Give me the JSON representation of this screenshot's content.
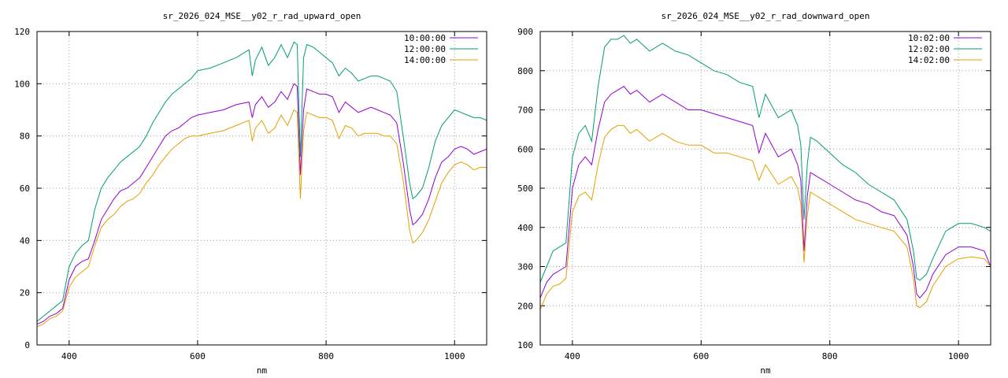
{
  "chart_data": [
    {
      "type": "line",
      "title": "sr_2026_024_MSE__y02_r_rad_upward_open",
      "xlabel": "nm",
      "ylabel": "",
      "xlim": [
        350,
        1050
      ],
      "ylim": [
        0,
        120
      ],
      "xticks": [
        400,
        600,
        800,
        1000
      ],
      "yticks": [
        0,
        20,
        40,
        60,
        80,
        100,
        120
      ],
      "grid": true,
      "legend_position": "top-right",
      "series": [
        {
          "name": "10:00:00",
          "color": "#9400d3",
          "x": [
            350,
            360,
            370,
            380,
            390,
            400,
            410,
            420,
            430,
            440,
            450,
            460,
            470,
            480,
            490,
            500,
            510,
            520,
            530,
            540,
            550,
            560,
            570,
            580,
            590,
            600,
            620,
            640,
            660,
            680,
            685,
            690,
            700,
            710,
            720,
            730,
            740,
            750,
            755,
            760,
            765,
            770,
            780,
            790,
            800,
            810,
            820,
            830,
            840,
            850,
            860,
            870,
            880,
            890,
            900,
            910,
            920,
            930,
            935,
            940,
            950,
            960,
            970,
            980,
            990,
            1000,
            1010,
            1020,
            1030,
            1040,
            1050
          ],
          "y": [
            8,
            9,
            11,
            12,
            14,
            25,
            30,
            32,
            33,
            40,
            48,
            52,
            56,
            59,
            60,
            62,
            64,
            68,
            72,
            76,
            80,
            82,
            83,
            85,
            87,
            88,
            89,
            90,
            92,
            93,
            87,
            92,
            95,
            91,
            93,
            97,
            94,
            100,
            99,
            65,
            90,
            98,
            97,
            96,
            96,
            95,
            89,
            93,
            91,
            89,
            90,
            91,
            90,
            89,
            88,
            85,
            70,
            52,
            46,
            47,
            50,
            56,
            64,
            70,
            72,
            75,
            76,
            75,
            73,
            74,
            75
          ]
        },
        {
          "name": "12:00:00",
          "color": "#009e73",
          "x": [
            350,
            360,
            370,
            380,
            390,
            400,
            410,
            420,
            430,
            440,
            450,
            460,
            470,
            480,
            490,
            500,
            510,
            520,
            530,
            540,
            550,
            560,
            570,
            580,
            590,
            600,
            620,
            640,
            660,
            680,
            685,
            690,
            700,
            710,
            720,
            730,
            740,
            750,
            755,
            760,
            765,
            770,
            780,
            790,
            800,
            810,
            820,
            830,
            840,
            850,
            860,
            870,
            880,
            890,
            900,
            910,
            920,
            930,
            935,
            940,
            950,
            960,
            970,
            980,
            990,
            1000,
            1010,
            1020,
            1030,
            1040,
            1050
          ],
          "y": [
            9,
            11,
            13,
            15,
            17,
            30,
            35,
            38,
            40,
            52,
            60,
            64,
            67,
            70,
            72,
            74,
            76,
            80,
            85,
            89,
            93,
            96,
            98,
            100,
            102,
            105,
            106,
            108,
            110,
            113,
            103,
            109,
            114,
            107,
            110,
            115,
            110,
            116,
            115,
            72,
            110,
            115,
            114,
            112,
            110,
            108,
            103,
            106,
            104,
            101,
            102,
            103,
            103,
            102,
            101,
            97,
            80,
            62,
            56,
            57,
            60,
            68,
            78,
            84,
            87,
            90,
            89,
            88,
            87,
            87,
            86
          ]
        },
        {
          "name": "14:00:00",
          "color": "#e69f00",
          "x": [
            350,
            360,
            370,
            380,
            390,
            400,
            410,
            420,
            430,
            440,
            450,
            460,
            470,
            480,
            490,
            500,
            510,
            520,
            530,
            540,
            550,
            560,
            570,
            580,
            590,
            600,
            620,
            640,
            660,
            680,
            685,
            690,
            700,
            710,
            720,
            730,
            740,
            750,
            755,
            760,
            765,
            770,
            780,
            790,
            800,
            810,
            820,
            830,
            840,
            850,
            860,
            870,
            880,
            890,
            900,
            910,
            920,
            930,
            935,
            940,
            950,
            960,
            970,
            980,
            990,
            1000,
            1010,
            1020,
            1030,
            1040,
            1050
          ],
          "y": [
            7,
            8,
            10,
            11,
            13,
            22,
            26,
            28,
            30,
            38,
            45,
            48,
            50,
            53,
            55,
            56,
            58,
            62,
            65,
            69,
            72,
            75,
            77,
            79,
            80,
            80,
            81,
            82,
            84,
            86,
            78,
            83,
            86,
            81,
            83,
            88,
            84,
            90,
            89,
            56,
            82,
            89,
            88,
            87,
            87,
            86,
            79,
            84,
            83,
            80,
            81,
            81,
            81,
            80,
            80,
            77,
            63,
            44,
            39,
            40,
            43,
            48,
            55,
            62,
            66,
            69,
            70,
            69,
            67,
            68,
            68
          ]
        }
      ]
    },
    {
      "type": "line",
      "title": "sr_2026_024_MSE__y02_r_rad_downward_open",
      "xlabel": "nm",
      "ylabel": "",
      "xlim": [
        350,
        1050
      ],
      "ylim": [
        100,
        900
      ],
      "xticks": [
        400,
        600,
        800,
        1000
      ],
      "yticks": [
        100,
        200,
        300,
        400,
        500,
        600,
        700,
        800,
        900
      ],
      "grid": true,
      "legend_position": "top-right",
      "series": [
        {
          "name": "10:02:00",
          "color": "#9400d3",
          "x": [
            350,
            360,
            370,
            380,
            390,
            400,
            410,
            420,
            430,
            440,
            450,
            460,
            470,
            480,
            490,
            500,
            520,
            540,
            560,
            580,
            600,
            620,
            640,
            660,
            680,
            690,
            700,
            720,
            740,
            750,
            755,
            760,
            765,
            770,
            780,
            800,
            820,
            840,
            860,
            880,
            900,
            920,
            930,
            935,
            940,
            950,
            960,
            980,
            1000,
            1020,
            1040,
            1050
          ],
          "y": [
            220,
            260,
            280,
            290,
            300,
            500,
            560,
            580,
            560,
            650,
            720,
            740,
            750,
            760,
            740,
            750,
            720,
            740,
            720,
            700,
            700,
            690,
            680,
            670,
            660,
            590,
            640,
            580,
            600,
            560,
            520,
            340,
            480,
            540,
            530,
            510,
            490,
            470,
            460,
            440,
            430,
            380,
            300,
            230,
            220,
            240,
            280,
            330,
            350,
            350,
            340,
            300
          ]
        },
        {
          "name": "12:02:00",
          "color": "#009e73",
          "x": [
            350,
            360,
            370,
            380,
            390,
            400,
            410,
            420,
            430,
            440,
            450,
            460,
            470,
            480,
            490,
            500,
            520,
            540,
            560,
            580,
            600,
            620,
            640,
            660,
            680,
            690,
            700,
            720,
            740,
            750,
            755,
            760,
            765,
            770,
            780,
            800,
            820,
            840,
            860,
            880,
            900,
            920,
            930,
            935,
            940,
            950,
            960,
            980,
            1000,
            1020,
            1040,
            1050
          ],
          "y": [
            260,
            300,
            340,
            350,
            360,
            580,
            640,
            660,
            620,
            760,
            860,
            880,
            880,
            890,
            870,
            880,
            850,
            870,
            850,
            840,
            820,
            800,
            790,
            770,
            760,
            680,
            740,
            680,
            700,
            660,
            610,
            420,
            560,
            630,
            620,
            590,
            560,
            540,
            510,
            490,
            470,
            420,
            340,
            270,
            265,
            280,
            320,
            390,
            410,
            410,
            400,
            390
          ]
        },
        {
          "name": "14:02:00",
          "color": "#e69f00",
          "x": [
            350,
            360,
            370,
            380,
            390,
            400,
            410,
            420,
            430,
            440,
            450,
            460,
            470,
            480,
            490,
            500,
            520,
            540,
            560,
            580,
            600,
            620,
            640,
            660,
            680,
            690,
            700,
            720,
            740,
            750,
            755,
            760,
            765,
            770,
            780,
            800,
            820,
            840,
            860,
            880,
            900,
            920,
            930,
            935,
            940,
            950,
            960,
            980,
            1000,
            1020,
            1040,
            1050
          ],
          "y": [
            190,
            230,
            250,
            255,
            270,
            440,
            480,
            490,
            470,
            560,
            630,
            650,
            660,
            660,
            640,
            650,
            620,
            640,
            620,
            610,
            610,
            590,
            590,
            580,
            570,
            520,
            560,
            510,
            530,
            500,
            460,
            310,
            430,
            490,
            480,
            460,
            440,
            420,
            410,
            400,
            390,
            350,
            270,
            200,
            195,
            210,
            250,
            300,
            320,
            325,
            320,
            300
          ]
        }
      ]
    }
  ]
}
